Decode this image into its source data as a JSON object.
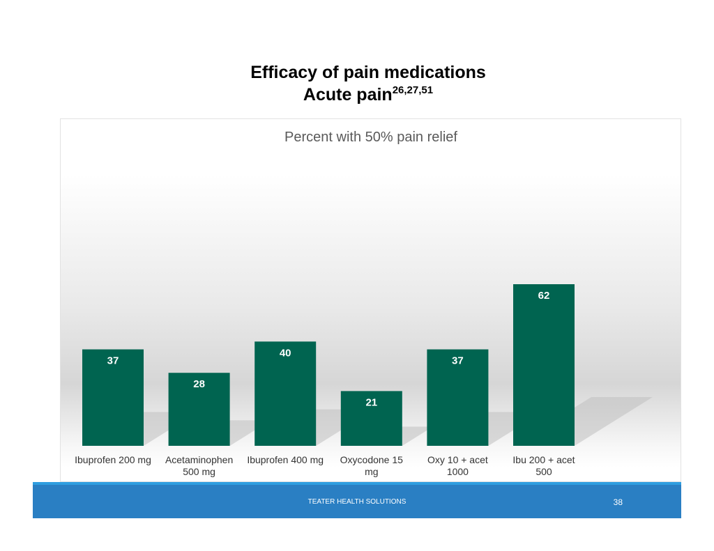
{
  "slide": {
    "title_line1": "Efficacy of pain medications",
    "title_line2": "Acute pain",
    "title_refs": "26,27,51"
  },
  "footer": {
    "text": "TEATER HEALTH SOLUTIONS",
    "page_number": "38"
  },
  "colors": {
    "bar": "#006450",
    "footer": "#2a7fc3",
    "footer_accent": "#2f9ee0"
  },
  "chart_data": {
    "type": "bar",
    "title": "Percent with 50% pain relief",
    "categories": [
      [
        "Ibuprofen 200 mg"
      ],
      [
        "Acetaminophen",
        "500 mg"
      ],
      [
        "Ibuprofen 400 mg"
      ],
      [
        "Oxycodone 15",
        "mg"
      ],
      [
        "Oxy 10 + acet",
        "1000"
      ],
      [
        "Ibu 200 + acet",
        "500"
      ]
    ],
    "values": [
      37,
      28,
      40,
      21,
      37,
      62
    ],
    "data_labels": true,
    "ylim": [
      0,
      70
    ],
    "grid": false,
    "legend": "none"
  }
}
